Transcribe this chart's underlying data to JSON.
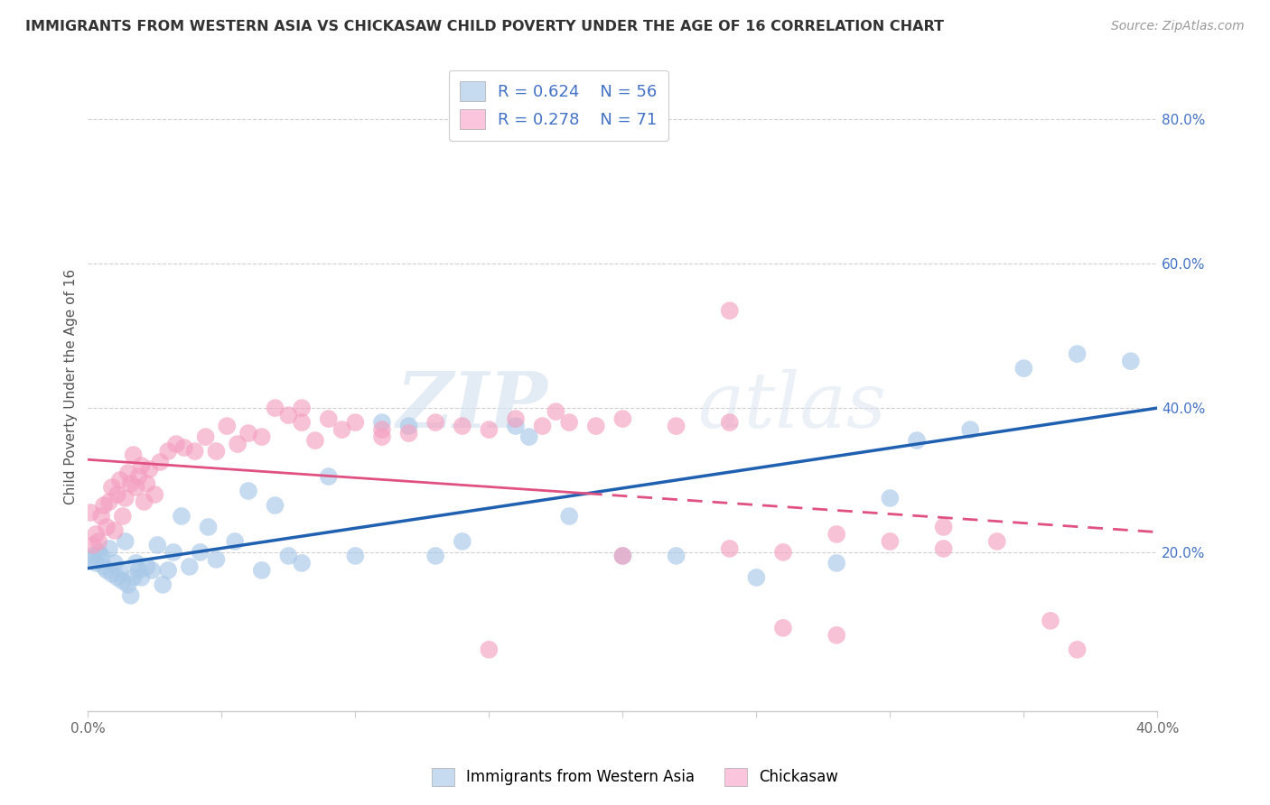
{
  "title": "IMMIGRANTS FROM WESTERN ASIA VS CHICKASAW CHILD POVERTY UNDER THE AGE OF 16 CORRELATION CHART",
  "source": "Source: ZipAtlas.com",
  "ylabel": "Child Poverty Under the Age of 16",
  "xlim": [
    0.0,
    0.4
  ],
  "ylim": [
    -0.02,
    0.88
  ],
  "xticks": [
    0.0,
    0.05,
    0.1,
    0.15,
    0.2,
    0.25,
    0.3,
    0.35,
    0.4
  ],
  "xticklabels": [
    "0.0%",
    "",
    "",
    "",
    "",
    "",
    "",
    "",
    "40.0%"
  ],
  "yticks_right": [
    0.0,
    0.2,
    0.4,
    0.6,
    0.8
  ],
  "yticklabels_right": [
    "",
    "20.0%",
    "40.0%",
    "60.0%",
    "80.0%"
  ],
  "blue_color": "#a8c8e8",
  "pink_color": "#f4a0c0",
  "blue_line_color": "#2060b0",
  "pink_line_color": "#e05080",
  "legend_label1": "Immigrants from Western Asia",
  "legend_label2": "Chickasaw",
  "watermark": "ZIPatlas",
  "blue_scatter_x": [
    0.001,
    0.002,
    0.003,
    0.004,
    0.005,
    0.006,
    0.007,
    0.008,
    0.009,
    0.01,
    0.011,
    0.012,
    0.013,
    0.014,
    0.015,
    0.016,
    0.017,
    0.018,
    0.019,
    0.02,
    0.022,
    0.024,
    0.026,
    0.028,
    0.03,
    0.032,
    0.035,
    0.038,
    0.042,
    0.045,
    0.048,
    0.055,
    0.06,
    0.065,
    0.07,
    0.075,
    0.08,
    0.09,
    0.1,
    0.11,
    0.12,
    0.13,
    0.14,
    0.16,
    0.18,
    0.2,
    0.22,
    0.25,
    0.28,
    0.31,
    0.33,
    0.35,
    0.37,
    0.39,
    0.165,
    0.3
  ],
  "blue_scatter_y": [
    0.19,
    0.195,
    0.185,
    0.2,
    0.195,
    0.18,
    0.175,
    0.205,
    0.17,
    0.185,
    0.165,
    0.175,
    0.16,
    0.215,
    0.155,
    0.14,
    0.165,
    0.185,
    0.175,
    0.165,
    0.18,
    0.175,
    0.21,
    0.155,
    0.175,
    0.2,
    0.25,
    0.18,
    0.2,
    0.235,
    0.19,
    0.215,
    0.285,
    0.175,
    0.265,
    0.195,
    0.185,
    0.305,
    0.195,
    0.38,
    0.375,
    0.195,
    0.215,
    0.375,
    0.25,
    0.195,
    0.195,
    0.165,
    0.185,
    0.355,
    0.37,
    0.455,
    0.475,
    0.465,
    0.36,
    0.275
  ],
  "pink_scatter_x": [
    0.001,
    0.002,
    0.003,
    0.004,
    0.005,
    0.006,
    0.007,
    0.008,
    0.009,
    0.01,
    0.011,
    0.012,
    0.013,
    0.014,
    0.015,
    0.016,
    0.017,
    0.018,
    0.019,
    0.02,
    0.021,
    0.022,
    0.023,
    0.025,
    0.027,
    0.03,
    0.033,
    0.036,
    0.04,
    0.044,
    0.048,
    0.052,
    0.056,
    0.06,
    0.065,
    0.07,
    0.075,
    0.08,
    0.085,
    0.09,
    0.095,
    0.1,
    0.11,
    0.12,
    0.13,
    0.14,
    0.15,
    0.16,
    0.17,
    0.18,
    0.19,
    0.2,
    0.22,
    0.24,
    0.26,
    0.28,
    0.3,
    0.32,
    0.34,
    0.36,
    0.15,
    0.2,
    0.24,
    0.26,
    0.175,
    0.11,
    0.24,
    0.28,
    0.08,
    0.32,
    0.37
  ],
  "pink_scatter_y": [
    0.255,
    0.21,
    0.225,
    0.215,
    0.25,
    0.265,
    0.235,
    0.27,
    0.29,
    0.23,
    0.28,
    0.3,
    0.25,
    0.275,
    0.31,
    0.295,
    0.335,
    0.29,
    0.305,
    0.32,
    0.27,
    0.295,
    0.315,
    0.28,
    0.325,
    0.34,
    0.35,
    0.345,
    0.34,
    0.36,
    0.34,
    0.375,
    0.35,
    0.365,
    0.36,
    0.4,
    0.39,
    0.4,
    0.355,
    0.385,
    0.37,
    0.38,
    0.37,
    0.365,
    0.38,
    0.375,
    0.37,
    0.385,
    0.375,
    0.38,
    0.375,
    0.385,
    0.375,
    0.38,
    0.095,
    0.225,
    0.215,
    0.235,
    0.215,
    0.105,
    0.065,
    0.195,
    0.535,
    0.2,
    0.395,
    0.36,
    0.205,
    0.085,
    0.38,
    0.205,
    0.065
  ]
}
